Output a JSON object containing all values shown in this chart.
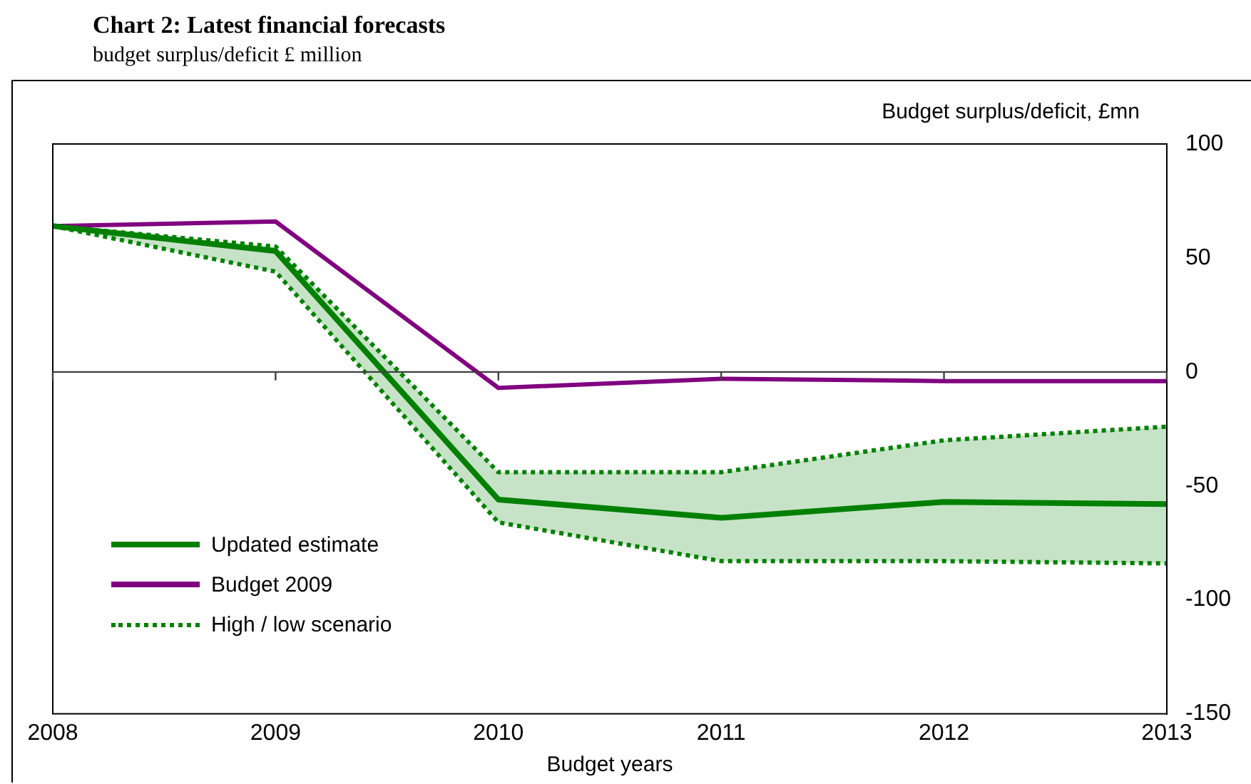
{
  "chart_data": {
    "type": "line",
    "title": "Chart 2: Latest financial forecasts",
    "subtitle": "budget surplus/deficit £ million",
    "xlabel": "Budget years",
    "ylabel": "Budget surplus/deficit, £mn",
    "categories": [
      "2008",
      "2009",
      "2010",
      "2011",
      "2012",
      "2013"
    ],
    "series": [
      {
        "name": "Updated estimate",
        "color": "#008000",
        "values": [
          64,
          53,
          -56,
          -64,
          -57,
          -58
        ],
        "lower": [
          64,
          44,
          -66,
          -83,
          -83,
          -84
        ],
        "upper": [
          64,
          55,
          -44,
          -44,
          -30,
          -24
        ]
      },
      {
        "name": "Budget 2009",
        "color": "#800080",
        "values": [
          64,
          66,
          -7,
          -3,
          -4,
          -4
        ]
      },
      {
        "name": "High / low scenario",
        "color": "#008000",
        "line_style": "dotted",
        "values": [
          64,
          55,
          -44,
          -44,
          -30,
          -24
        ]
      },
      {
        "color": "#008000",
        "line_style": "dotted",
        "values": [
          64,
          44,
          -66,
          -83,
          -83,
          -84
        ]
      }
    ],
    "ylim": [
      -150,
      100
    ],
    "yticks": [
      -150,
      -100,
      -50,
      0,
      50,
      100
    ],
    "grid": false,
    "legend": "bottom left",
    "ref_lines": [
      {
        "axis": "y",
        "value": 0,
        "color": "#404040"
      }
    ]
  }
}
